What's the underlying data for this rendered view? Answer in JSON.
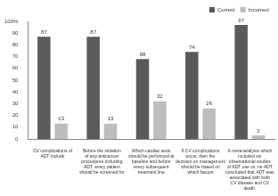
{
  "chart_data": {
    "type": "bar",
    "categories": [
      "CV complications of ADT include",
      "Before the initiation of any anticancer procedures including ADT, every patient should be screened for",
      "Which cardiac tests should be performed at baseline and before every subsequent treatment line",
      "If CV complications occur, then the decision on management should be based on which factors",
      "A meta-analysis which included six observational studies of ADT use vs. no ADT concluded that ADT was associated with both CV disease and CV death."
    ],
    "series": [
      {
        "name": "Correct",
        "color": "#5a5a5a",
        "values": [
          87,
          87,
          68,
          74,
          97
        ]
      },
      {
        "name": "Incorrect",
        "color": "#bdbdbd",
        "values": [
          13,
          13,
          32,
          26,
          3
        ]
      }
    ],
    "ylim": [
      0,
      100
    ],
    "yticks": [
      0,
      10,
      20,
      30,
      40,
      50,
      60,
      70,
      80,
      90,
      {
        "value": 100,
        "label": "100%"
      }
    ],
    "grid": false,
    "legend": "upper right",
    "data_labels": true
  }
}
